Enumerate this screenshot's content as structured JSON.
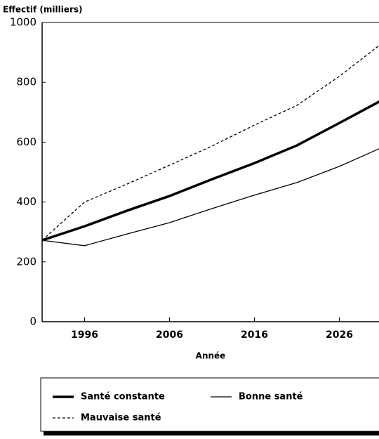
{
  "chart_data": {
    "type": "line",
    "y_label": "Effectif (milliers)",
    "x_label": "Année",
    "x": [
      1991,
      1996,
      2001,
      2006,
      2011,
      2016,
      2021,
      2026,
      2031
    ],
    "series": [
      {
        "name": "Santé constante",
        "color": "#000000",
        "linewidth": 3.5,
        "style": "solid",
        "values": [
          272,
          319,
          371,
          420,
          476,
          530,
          589,
          664,
          740
        ]
      },
      {
        "name": "Bonne santé",
        "color": "#000000",
        "linewidth": 1.3,
        "style": "solid",
        "values": [
          272,
          254,
          293,
          331,
          378,
          423,
          465,
          519,
          582
        ]
      },
      {
        "name": "Mauvaise santé",
        "color": "#000000",
        "linewidth": 1.3,
        "style": "dashed",
        "values": [
          272,
          400,
          460,
          523,
          587,
          657,
          723,
          820,
          930
        ]
      }
    ],
    "xlim": [
      1991,
      2031
    ],
    "ylim": [
      0,
      1000
    ],
    "xticks": [
      1996,
      2006,
      2016,
      2026
    ],
    "yticks": [
      0,
      200,
      400,
      600,
      800,
      1000
    ],
    "grid": false
  }
}
